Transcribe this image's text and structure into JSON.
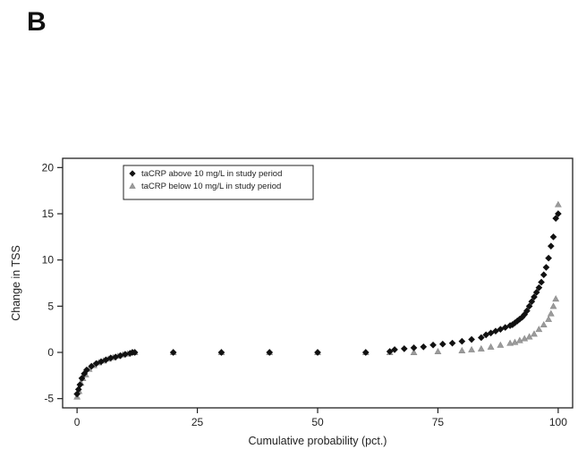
{
  "panel_label": "B",
  "chart_data": {
    "type": "scatter",
    "title": "",
    "xlabel": "Cumulative probability (pct.)",
    "ylabel": "Change in TSS",
    "xlim": [
      -3,
      103
    ],
    "ylim": [
      -6,
      21
    ],
    "xticks": [
      0,
      25,
      50,
      75,
      100
    ],
    "yticks": [
      -5,
      0,
      5,
      10,
      15,
      20
    ],
    "ytick_labels": [
      "-5",
      "0",
      "5",
      "10",
      "15",
      "20"
    ],
    "xtick_labels": [
      "0",
      "25",
      "50",
      "75",
      "100"
    ],
    "grid": false,
    "legend_position": "top-left",
    "series": [
      {
        "name": "taCRP above 10 mg/L in study period",
        "marker": "diamond",
        "color": "#111111",
        "x": [
          0.0,
          0.3,
          0.6,
          1.0,
          1.5,
          2.0,
          3.0,
          4.0,
          5.0,
          6.0,
          7.0,
          8.0,
          9.0,
          10.0,
          11.0,
          11.5,
          12.0,
          20.0,
          30.0,
          40.0,
          50.0,
          60.0,
          65.0,
          66.0,
          68.0,
          70.0,
          72.0,
          74.0,
          76.0,
          78.0,
          80.0,
          82.0,
          84.0,
          85.0,
          86.0,
          87.0,
          88.0,
          89.0,
          90.0,
          90.5,
          91.0,
          91.5,
          92.0,
          92.5,
          93.0,
          93.5,
          94.0,
          94.5,
          95.0,
          95.5,
          96.0,
          96.5,
          97.0,
          97.5,
          98.0,
          98.5,
          99.0,
          99.5,
          100.0
        ],
        "y": [
          -4.5,
          -4.0,
          -3.5,
          -2.8,
          -2.3,
          -1.9,
          -1.5,
          -1.2,
          -1.0,
          -0.8,
          -0.6,
          -0.5,
          -0.35,
          -0.2,
          -0.1,
          0.0,
          0.0,
          0.0,
          0.0,
          0.0,
          0.0,
          0.0,
          0.1,
          0.3,
          0.4,
          0.5,
          0.6,
          0.8,
          0.9,
          1.0,
          1.2,
          1.4,
          1.6,
          1.9,
          2.1,
          2.3,
          2.5,
          2.7,
          2.9,
          3.0,
          3.2,
          3.4,
          3.6,
          3.8,
          4.1,
          4.5,
          5.0,
          5.5,
          6.0,
          6.5,
          7.0,
          7.6,
          8.4,
          9.2,
          10.2,
          11.5,
          12.5,
          14.5,
          15.0
        ]
      },
      {
        "name": "taCRP below 10 mg/L in study period",
        "marker": "triangle",
        "color": "#8a8a8a",
        "x": [
          0.0,
          0.4,
          0.8,
          1.2,
          1.8,
          2.5,
          3.5,
          4.5,
          5.5,
          6.5,
          7.5,
          8.5,
          9.5,
          10.5,
          11.5,
          12.0,
          20.0,
          30.0,
          40.0,
          50.0,
          60.0,
          65.0,
          70.0,
          75.0,
          80.0,
          82.0,
          84.0,
          86.0,
          88.0,
          90.0,
          91.0,
          92.0,
          93.0,
          94.0,
          95.0,
          96.0,
          97.0,
          98.0,
          98.5,
          99.0,
          99.5,
          100.0
        ],
        "y": [
          -4.8,
          -4.2,
          -3.3,
          -2.8,
          -2.4,
          -1.8,
          -1.4,
          -1.1,
          -0.9,
          -0.7,
          -0.55,
          -0.4,
          -0.25,
          -0.15,
          0.0,
          0.0,
          0.0,
          0.0,
          0.0,
          0.0,
          0.0,
          0.0,
          0.0,
          0.1,
          0.2,
          0.3,
          0.4,
          0.6,
          0.8,
          1.0,
          1.1,
          1.3,
          1.5,
          1.7,
          2.0,
          2.5,
          3.0,
          3.6,
          4.2,
          5.0,
          5.8,
          16.0
        ]
      }
    ]
  }
}
